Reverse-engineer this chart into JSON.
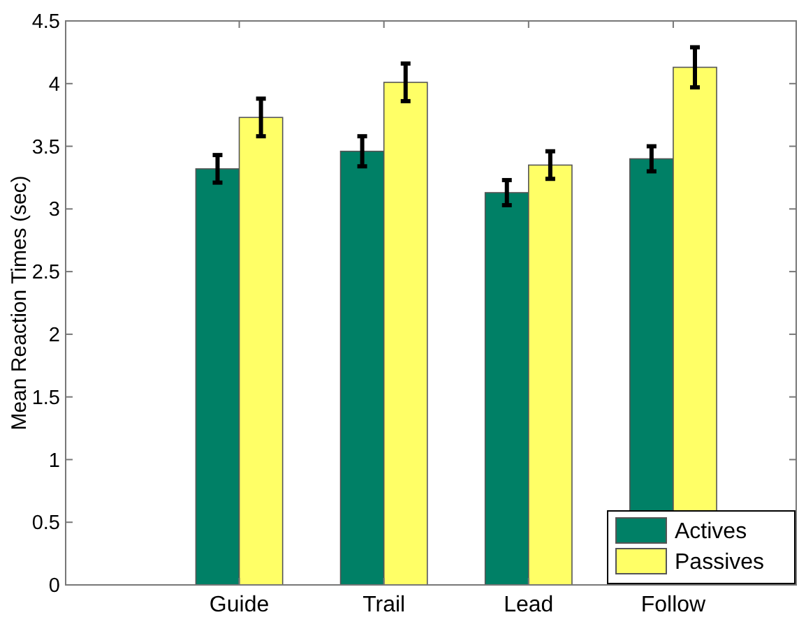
{
  "chart_data": {
    "type": "bar",
    "ylabel": "Mean Reaction Times (sec)",
    "categories": [
      "Guide",
      "Trail",
      "Lead",
      "Follow"
    ],
    "series": [
      {
        "name": "Actives",
        "color": "#008066",
        "values": [
          3.32,
          3.46,
          3.13,
          3.4
        ],
        "errors": [
          0.11,
          0.12,
          0.1,
          0.1
        ]
      },
      {
        "name": "Passives",
        "color": "#ffff66",
        "values": [
          3.73,
          4.01,
          3.35,
          4.13
        ],
        "errors": [
          0.15,
          0.15,
          0.11,
          0.16
        ]
      }
    ],
    "ylim": [
      0,
      4.5
    ],
    "yticks": [
      0,
      0.5,
      1,
      1.5,
      2,
      2.5,
      3,
      3.5,
      4,
      4.5
    ],
    "grid": false,
    "legend": "bottom right"
  }
}
